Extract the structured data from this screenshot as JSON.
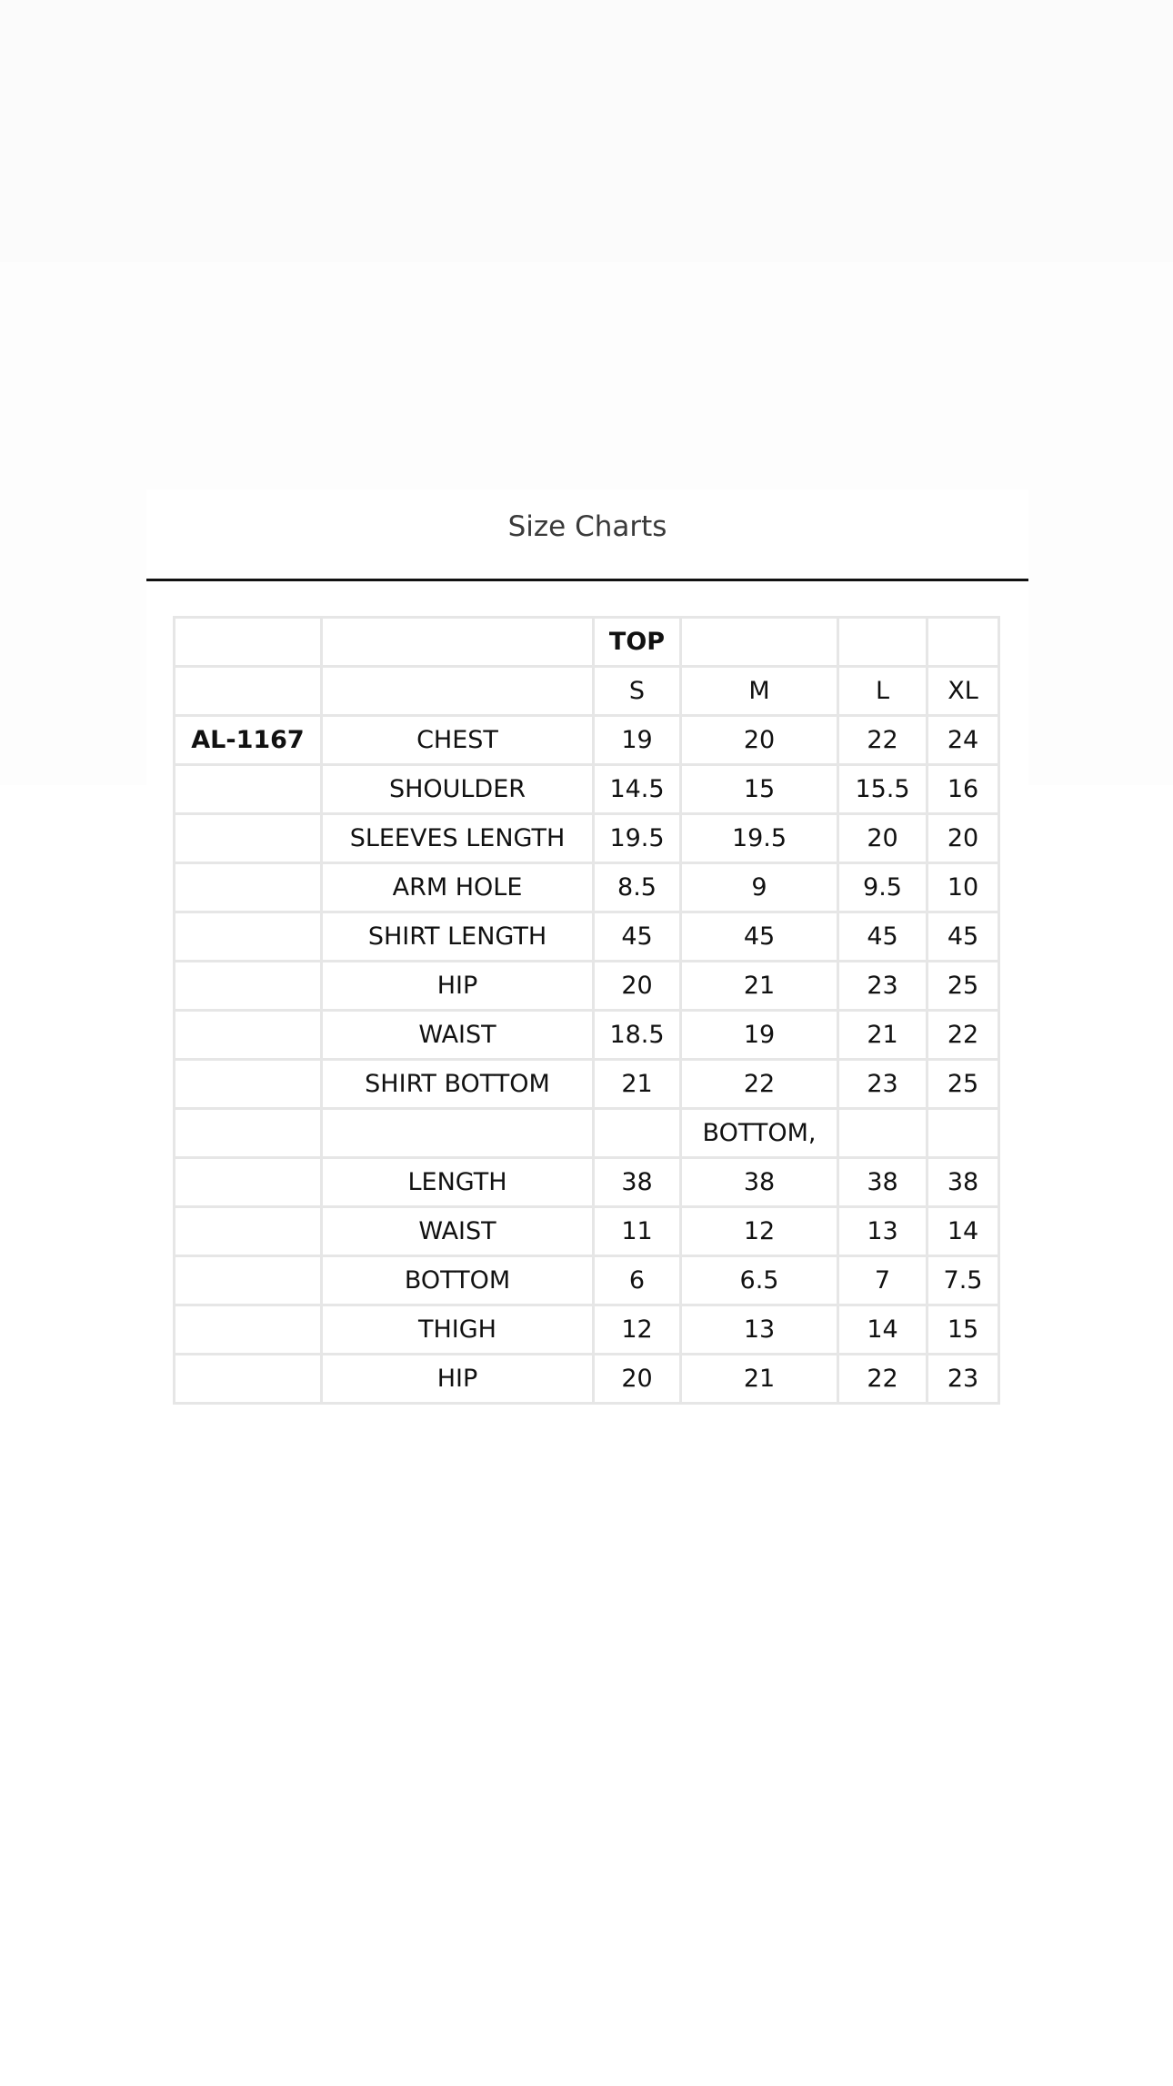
{
  "modal": {
    "title": "Size Charts"
  },
  "table": {
    "rows": [
      [
        "",
        "",
        "TOP",
        "",
        "",
        ""
      ],
      [
        "",
        "",
        "S",
        "M",
        "L",
        "XL"
      ],
      [
        "AL-1167",
        "CHEST",
        "19",
        "20",
        "22",
        "24"
      ],
      [
        "",
        "SHOULDER",
        "14.5",
        "15",
        "15.5",
        "16"
      ],
      [
        "",
        "SLEEVES LENGTH",
        "19.5",
        "19.5",
        "20",
        "20"
      ],
      [
        "",
        "ARM HOLE",
        "8.5",
        "9",
        "9.5",
        "10"
      ],
      [
        "",
        "SHIRT LENGTH",
        "45",
        "45",
        "45",
        "45"
      ],
      [
        "",
        "HIP",
        "20",
        "21",
        "23",
        "25"
      ],
      [
        "",
        "WAIST",
        "18.5",
        "19",
        "21",
        "22"
      ],
      [
        "",
        "SHIRT BOTTOM",
        "21",
        "22",
        "23",
        "25"
      ],
      [
        "",
        "",
        "",
        "BOTTOM,",
        "",
        ""
      ],
      [
        "",
        "LENGTH",
        "38",
        "38",
        "38",
        "38"
      ],
      [
        "",
        "WAIST",
        "11",
        "12",
        "13",
        "14"
      ],
      [
        "",
        "BOTTOM",
        "6",
        "6.5",
        "7",
        "7.5"
      ],
      [
        "",
        "THIGH",
        "12",
        "13",
        "14",
        "15"
      ],
      [
        "",
        "HIP",
        "20",
        "21",
        "22",
        "23"
      ]
    ],
    "bold_cells": [
      "0.2",
      "2.0"
    ]
  }
}
